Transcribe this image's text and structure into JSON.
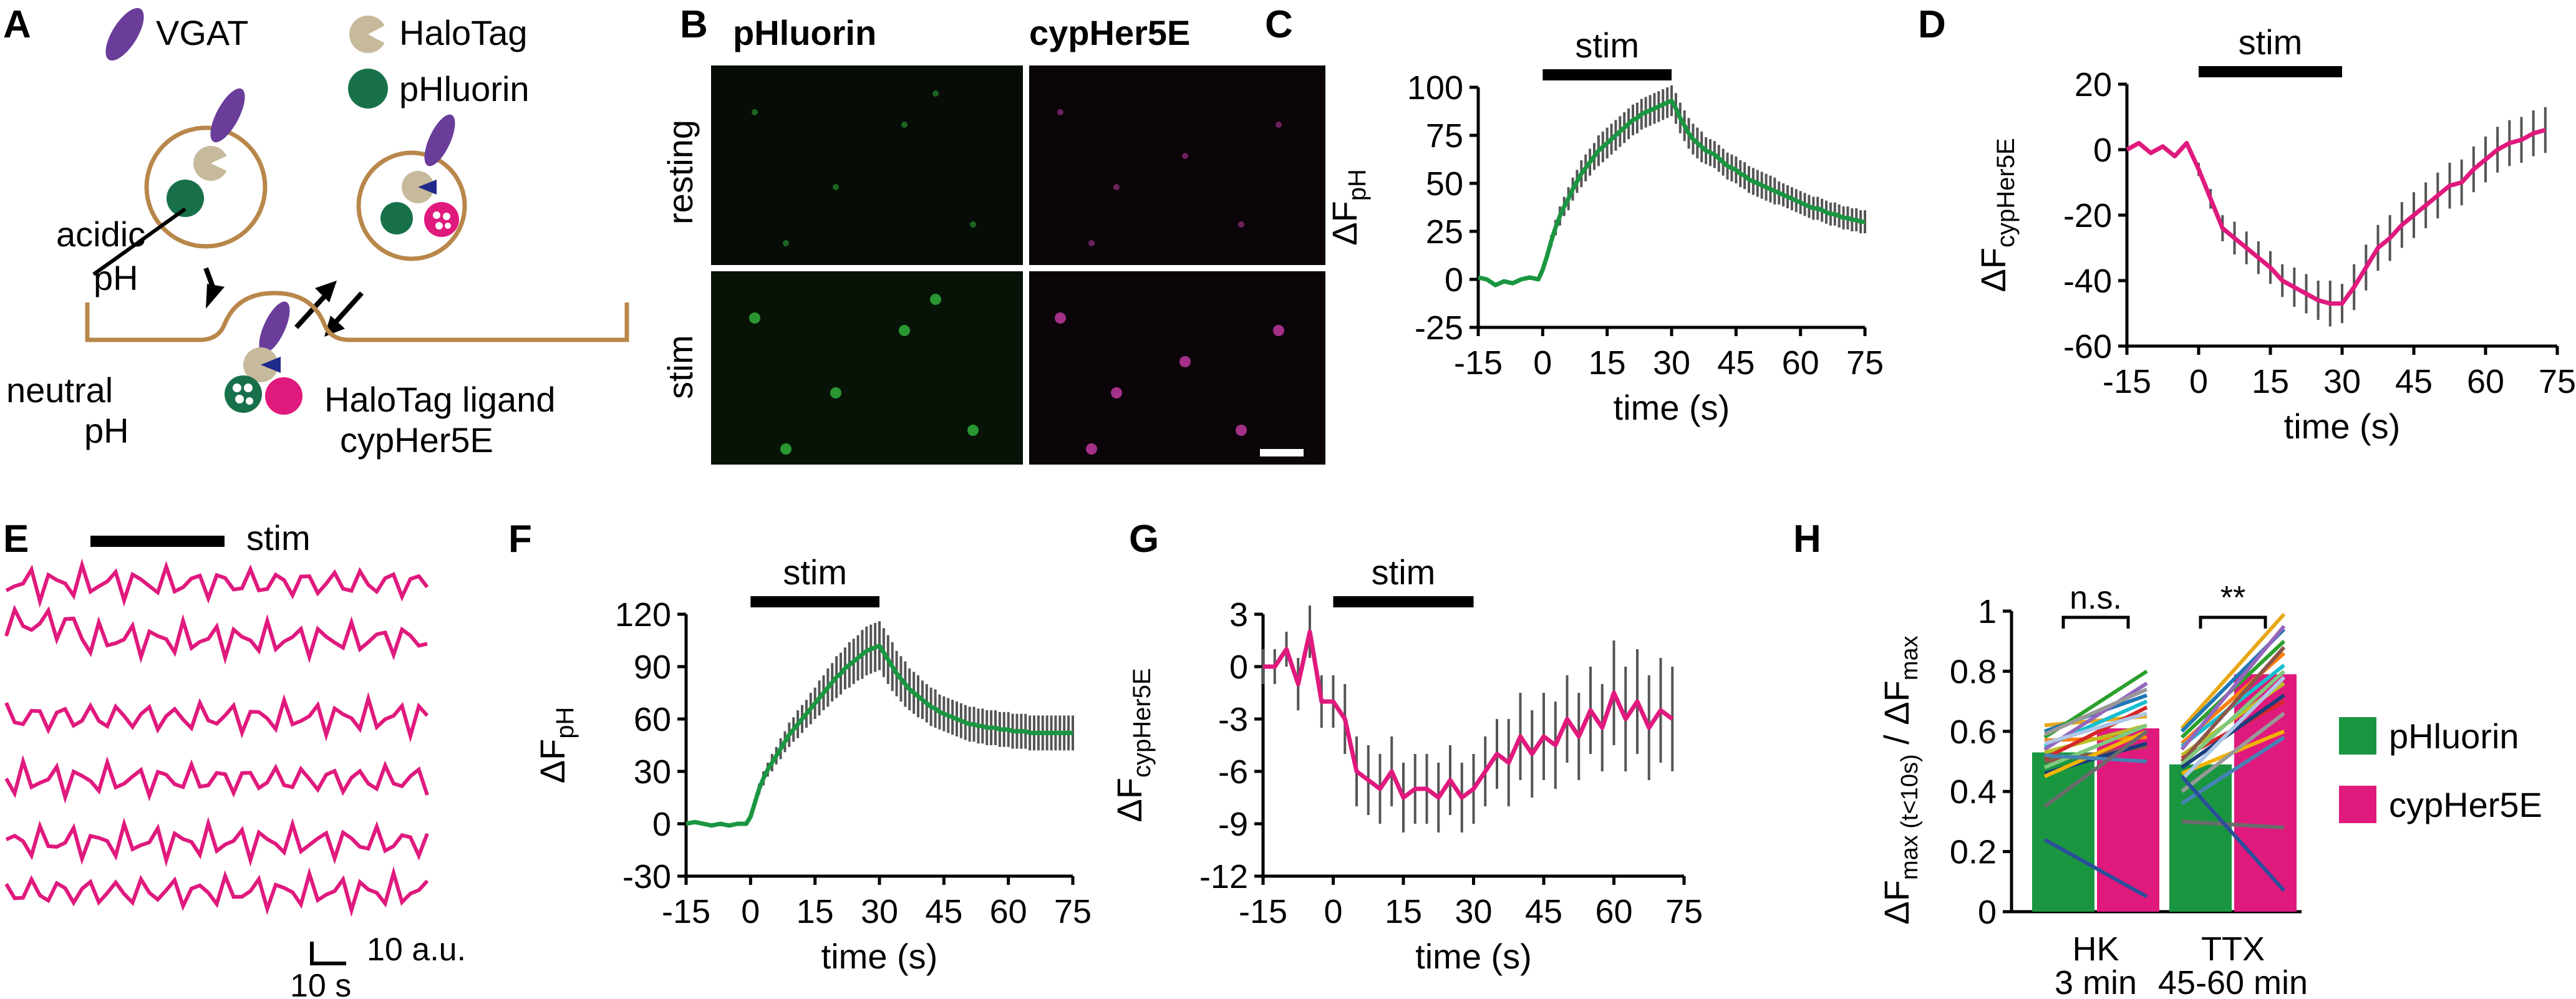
{
  "colors": {
    "green": "#1a9641",
    "magenta": "#e0197d",
    "purple": "#6a3d9a",
    "tan": "#c7b99c",
    "darkgreen": "#17704a",
    "navy": "#1f2a8a",
    "vesicle": "#b8874a",
    "errorbar": "#555555",
    "cypher_img": "#c0389f",
    "phluorin_img": "#2fae3a"
  },
  "panels": {
    "A": {
      "letter": "A",
      "legend_vgat": "VGAT",
      "legend_halotag": "HaloTag",
      "legend_phluorin": "pHluorin",
      "acidic_pH": [
        "acidic",
        "pH"
      ],
      "neutral_pH": [
        "neutral",
        "pH"
      ],
      "ligand_label": "HaloTag ligand",
      "cypher_label": "cypHer5E"
    },
    "B": {
      "letter": "B",
      "col1": "pHluorin",
      "col2": "cypHer5E",
      "row1": "resting",
      "row2": "stim"
    },
    "E": {
      "letter": "E",
      "stim_label": "stim",
      "scale_y": "10 a.u.",
      "scale_x": "10 s"
    }
  },
  "chart_data": [
    {
      "panel": "C",
      "type": "line",
      "color": "green",
      "stim_label": "stim",
      "stim": [
        0,
        30
      ],
      "xlabel": "time (s)",
      "ylabel_main": "ΔF",
      "ylabel_sub": "pH",
      "xlim": [
        -15,
        75
      ],
      "ylim": [
        -25,
        100
      ],
      "xticks": [
        -15,
        0,
        15,
        30,
        45,
        60,
        75
      ],
      "yticks": [
        -25,
        0,
        25,
        50,
        75,
        100
      ],
      "x": [
        -15,
        -13,
        -11,
        -9,
        -7,
        -5,
        -3,
        -1,
        0,
        1,
        2,
        3,
        4,
        5,
        6,
        7,
        8,
        9,
        10,
        11,
        12,
        13,
        14,
        15,
        16,
        17,
        18,
        19,
        20,
        21,
        22,
        23,
        24,
        25,
        26,
        27,
        28,
        29,
        30,
        31,
        32,
        33,
        34,
        35,
        36,
        37,
        38,
        39,
        40,
        41,
        42,
        43,
        44,
        45,
        46,
        47,
        48,
        49,
        50,
        51,
        52,
        53,
        54,
        55,
        56,
        57,
        58,
        59,
        60,
        61,
        62,
        63,
        64,
        65,
        66,
        67,
        68,
        69,
        70,
        71,
        72,
        73,
        74,
        75
      ],
      "y": [
        1,
        0,
        -3,
        -1,
        -2,
        0,
        1,
        0,
        5,
        12,
        20,
        27,
        33,
        38,
        42,
        47,
        51,
        55,
        58,
        61,
        64,
        67,
        69,
        71,
        73,
        75,
        77,
        79,
        81,
        83,
        84,
        86,
        87,
        88,
        89,
        90,
        91,
        92,
        93,
        89,
        84,
        80,
        76,
        73,
        71,
        69,
        67,
        66,
        65,
        63,
        61,
        59,
        58,
        57,
        55,
        54,
        52,
        51,
        50,
        49,
        48,
        47,
        46,
        45,
        44,
        43,
        42,
        41,
        40,
        39,
        38,
        37,
        37,
        36,
        35,
        34,
        34,
        33,
        32,
        32,
        31,
        31,
        30,
        30
      ],
      "err": [
        0,
        0,
        0,
        0,
        0,
        0,
        0,
        0,
        1,
        2,
        3,
        4,
        5,
        5,
        6,
        6,
        6,
        7,
        7,
        7,
        7,
        8,
        8,
        8,
        8,
        8,
        8,
        8,
        8,
        8,
        8,
        8,
        8,
        8,
        8,
        8,
        8,
        8,
        8,
        8,
        8,
        8,
        8,
        8,
        8,
        8,
        7,
        7,
        7,
        7,
        7,
        7,
        7,
        7,
        7,
        7,
        7,
        7,
        7,
        7,
        7,
        7,
        7,
        6,
        6,
        6,
        6,
        6,
        6,
        6,
        6,
        6,
        6,
        6,
        6,
        6,
        6,
        6,
        6,
        6,
        6,
        6,
        6,
        6
      ]
    },
    {
      "panel": "D",
      "type": "line",
      "color": "magenta",
      "stim_label": "stim",
      "stim": [
        0,
        30
      ],
      "xlabel": "time (s)",
      "ylabel_main": "ΔF",
      "ylabel_sub": "cypHer5E",
      "xlim": [
        -15,
        75
      ],
      "ylim": [
        -60,
        20
      ],
      "xticks": [
        -15,
        0,
        15,
        30,
        45,
        60,
        75
      ],
      "yticks": [
        -60,
        -40,
        -20,
        0,
        20
      ],
      "x": [
        -15,
        -12.5,
        -10,
        -7.5,
        -5,
        -2.5,
        0,
        2.5,
        5,
        7.5,
        10,
        12.5,
        15,
        17.5,
        20,
        22.5,
        25,
        27.5,
        30,
        32.5,
        35,
        37.5,
        40,
        42.5,
        45,
        47.5,
        50,
        52.5,
        55,
        57.5,
        60,
        62.5,
        65,
        67.5,
        70,
        72.5
      ],
      "y": [
        0,
        2,
        -1,
        1,
        -2,
        2,
        -6,
        -15,
        -24,
        -27,
        -30,
        -33,
        -36,
        -40,
        -42,
        -44,
        -46,
        -47,
        -47,
        -42,
        -36,
        -30,
        -27,
        -23,
        -20,
        -17,
        -14,
        -11,
        -10,
        -6,
        -3,
        0,
        2,
        3,
        5,
        6
      ],
      "err": [
        0,
        0,
        0,
        0,
        0,
        0,
        2,
        3,
        4,
        5,
        5,
        5,
        5,
        5,
        6,
        6,
        6,
        7,
        6,
        7,
        7,
        7,
        7,
        7,
        7,
        7,
        7,
        7,
        7,
        7,
        7,
        7,
        7,
        7,
        7,
        7
      ]
    },
    {
      "panel": "F",
      "type": "line",
      "color": "green",
      "stim_label": "stim",
      "stim": [
        0,
        30
      ],
      "xlabel": "time (s)",
      "ylabel_main": "ΔF",
      "ylabel_sub": "pH",
      "xlim": [
        -15,
        75
      ],
      "ylim": [
        -30,
        120
      ],
      "xticks": [
        -15,
        0,
        15,
        30,
        45,
        60,
        75
      ],
      "yticks": [
        -30,
        0,
        30,
        60,
        90,
        120
      ],
      "x": [
        -15,
        -13,
        -11,
        -9,
        -7,
        -5,
        -3,
        -1,
        0,
        1,
        2,
        3,
        4,
        5,
        6,
        7,
        8,
        9,
        10,
        11,
        12,
        13,
        14,
        15,
        16,
        17,
        18,
        19,
        20,
        21,
        22,
        23,
        24,
        25,
        26,
        27,
        28,
        29,
        30,
        31,
        32,
        33,
        34,
        35,
        36,
        37,
        38,
        39,
        40,
        41,
        42,
        43,
        44,
        45,
        46,
        47,
        48,
        49,
        50,
        51,
        52,
        53,
        54,
        55,
        56,
        57,
        58,
        59,
        60,
        61,
        62,
        63,
        64,
        65,
        66,
        67,
        68,
        69,
        70,
        71,
        72,
        73,
        74,
        75
      ],
      "y": [
        0,
        1,
        0,
        -1,
        0,
        -1,
        0,
        0,
        4,
        12,
        20,
        26,
        31,
        35,
        39,
        43,
        47,
        51,
        54,
        57,
        60,
        63,
        66,
        69,
        72,
        75,
        78,
        81,
        84,
        86,
        89,
        91,
        93,
        95,
        97,
        99,
        100,
        101,
        102,
        98,
        94,
        90,
        86,
        83,
        80,
        77,
        75,
        73,
        71,
        69,
        67,
        66,
        64,
        63,
        62,
        61,
        60,
        59,
        58,
        57,
        57,
        56,
        56,
        55,
        55,
        55,
        54,
        54,
        54,
        53,
        53,
        53,
        53,
        52,
        52,
        52,
        52,
        52,
        52,
        52,
        52,
        52,
        52,
        52
      ],
      "err": [
        0,
        0,
        0,
        0,
        0,
        0,
        0,
        0,
        1,
        2,
        3,
        4,
        4,
        5,
        5,
        6,
        6,
        7,
        7,
        8,
        8,
        8,
        9,
        9,
        10,
        10,
        11,
        11,
        12,
        12,
        12,
        13,
        13,
        13,
        14,
        14,
        14,
        14,
        14,
        14,
        14,
        14,
        13,
        13,
        13,
        12,
        12,
        12,
        11,
        11,
        11,
        11,
        10,
        10,
        10,
        10,
        10,
        10,
        10,
        10,
        10,
        10,
        10,
        10,
        10,
        10,
        10,
        10,
        10,
        10,
        10,
        10,
        10,
        10,
        10,
        10,
        10,
        10,
        10,
        10,
        10,
        10,
        10,
        10
      ]
    },
    {
      "panel": "G",
      "type": "line",
      "color": "magenta",
      "stim_label": "stim",
      "stim": [
        0,
        30
      ],
      "xlabel": "time (s)",
      "ylabel_main": "ΔF",
      "ylabel_sub": "cypHer5E",
      "xlim": [
        -15,
        75
      ],
      "ylim": [
        -12,
        3
      ],
      "xticks": [
        -15,
        0,
        15,
        30,
        45,
        60,
        75
      ],
      "yticks": [
        -12,
        -9,
        -6,
        -3,
        0,
        3
      ],
      "x": [
        -15,
        -12.5,
        -10,
        -7.5,
        -5,
        -2.5,
        0,
        2.5,
        5,
        7.5,
        10,
        12.5,
        15,
        17.5,
        20,
        22.5,
        25,
        27.5,
        30,
        32.5,
        35,
        37.5,
        40,
        42.5,
        45,
        47.5,
        50,
        52.5,
        55,
        57.5,
        60,
        62.5,
        65,
        67.5,
        70,
        72.5
      ],
      "y": [
        0,
        0,
        1,
        -1,
        2,
        -2,
        -2,
        -3,
        -6,
        -6.5,
        -7,
        -6,
        -7.5,
        -7,
        -7,
        -7.5,
        -6.5,
        -7.5,
        -7,
        -6,
        -5,
        -5.5,
        -4,
        -5,
        -4,
        -4.5,
        -3,
        -4,
        -2.5,
        -3.5,
        -1.5,
        -3,
        -2,
        -3.5,
        -2.5,
        -3
      ],
      "err": [
        1,
        1,
        1,
        1.5,
        1.5,
        1.5,
        1.5,
        2,
        2,
        2,
        2,
        2,
        2,
        2,
        2,
        2,
        2,
        2,
        2,
        2,
        2,
        2.5,
        2.5,
        2.5,
        2.5,
        2.5,
        2.5,
        2.5,
        2.5,
        2.5,
        3,
        3,
        3,
        3,
        3,
        3
      ]
    },
    {
      "panel": "H",
      "type": "bar",
      "ylabel_main": "ΔF",
      "ylabel_sub1": "max (t<10s)",
      "ylabel_mid": " / ΔF",
      "ylabel_sub2": "max",
      "ylim": [
        0,
        1
      ],
      "yticks": [
        0,
        0.2,
        0.4,
        0.6,
        0.8,
        1
      ],
      "ytick_labels": [
        "0",
        "0.2",
        "0.4",
        "0.6",
        "0.8",
        "1"
      ],
      "categories": [
        [
          "HK",
          "3 min"
        ],
        [
          "TTX",
          "45-60 min"
        ]
      ],
      "series": [
        {
          "name": "pHluorin",
          "values": [
            0.53,
            0.49
          ]
        },
        {
          "name": "cypHer5E",
          "values": [
            0.61,
            0.79
          ]
        }
      ],
      "significance": [
        "n.s.",
        "**"
      ],
      "pairs": [
        [
          [
            0.62,
            0.65
          ],
          [
            0.6,
            0.72
          ],
          [
            0.58,
            0.8
          ],
          [
            0.57,
            0.58
          ],
          [
            0.55,
            0.7
          ],
          [
            0.54,
            0.76
          ],
          [
            0.53,
            0.62
          ],
          [
            0.51,
            0.68
          ],
          [
            0.5,
            0.55
          ],
          [
            0.48,
            0.62
          ],
          [
            0.46,
            0.56
          ],
          [
            0.45,
            0.6
          ],
          [
            0.56,
            0.66
          ],
          [
            0.59,
            0.74
          ],
          [
            0.52,
            0.5
          ],
          [
            0.35,
            0.6
          ],
          [
            0.24,
            0.05
          ]
        ],
        [
          [
            0.61,
            0.99
          ],
          [
            0.6,
            0.94
          ],
          [
            0.58,
            0.9
          ],
          [
            0.56,
            0.86
          ],
          [
            0.55,
            0.82
          ],
          [
            0.54,
            0.95
          ],
          [
            0.52,
            0.76
          ],
          [
            0.51,
            0.7
          ],
          [
            0.5,
            0.88
          ],
          [
            0.49,
            0.8
          ],
          [
            0.48,
            0.72
          ],
          [
            0.46,
            0.6
          ],
          [
            0.44,
            0.78
          ],
          [
            0.4,
            0.66
          ],
          [
            0.36,
            0.58
          ],
          [
            0.3,
            0.28
          ],
          [
            0.45,
            0.07
          ]
        ]
      ],
      "legend": [
        "pHluorin",
        "cypHer5E"
      ]
    }
  ]
}
